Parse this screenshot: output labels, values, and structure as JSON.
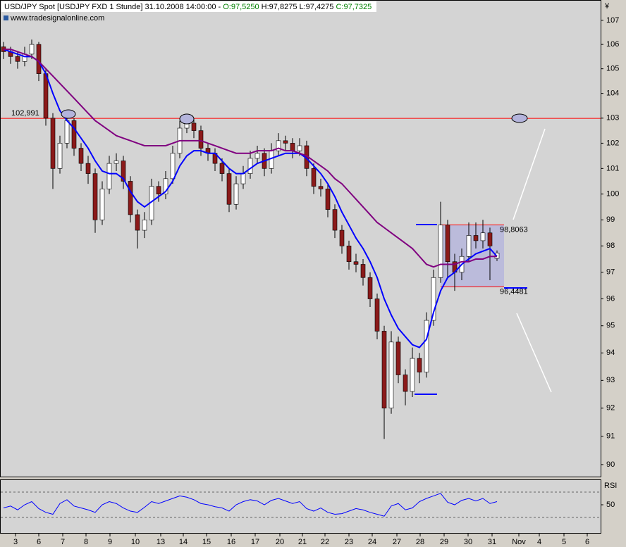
{
  "chart_data": [
    {
      "type": "candlestick",
      "title": "USD/JPY Spot [USDJPY FXD  1 Stunde] 31.10.2008 14:00:00 -",
      "ohlc_labels": [
        {
          "text": "O:97,5250",
          "color": "#008000"
        },
        {
          "text": "H:97,8275 L:97,4275",
          "color": "#000000"
        },
        {
          "text": "C:97,7325",
          "color": "#008000"
        }
      ],
      "source": "www.tradesignalonline.com",
      "currency_symbol": "¥",
      "x": [
        0,
        1,
        2,
        3,
        4,
        5,
        6,
        7,
        8,
        9,
        10,
        11,
        12,
        13,
        14,
        15,
        16,
        17,
        18,
        19,
        20,
        21,
        22,
        23,
        24,
        25,
        26,
        27,
        28,
        29,
        30,
        31,
        32,
        33,
        34,
        35,
        36,
        37,
        38,
        39,
        40,
        41,
        42,
        43,
        44,
        45,
        46,
        47,
        48,
        49,
        50,
        51,
        52,
        53,
        54,
        55,
        56,
        57,
        58,
        59,
        60,
        61,
        62,
        63,
        64,
        65,
        66,
        67,
        68,
        69,
        70
      ],
      "open": [
        105.9,
        105.7,
        105.5,
        105.3,
        105.6,
        106.0,
        104.8,
        103.0,
        101.0,
        102.0,
        102.9,
        101.8,
        101.2,
        100.8,
        99.0,
        100.2,
        101.2,
        101.3,
        100.5,
        99.2,
        98.6,
        99.0,
        100.3,
        100.0,
        100.6,
        101.6,
        102.6,
        102.8,
        102.5,
        101.8,
        101.6,
        101.2,
        100.8,
        99.6,
        100.4,
        100.8,
        101.4,
        101.6,
        101.0,
        101.7,
        102.1,
        102.0,
        101.7,
        101.9,
        101.0,
        100.3,
        100.2,
        99.4,
        98.6,
        98.0,
        97.4,
        97.3,
        96.8,
        96.0,
        94.8,
        92.0,
        94.4,
        93.2,
        92.6,
        93.8,
        93.3,
        95.2,
        96.8,
        98.8,
        97.4,
        97.0,
        97.6,
        98.4,
        98.2,
        98.5,
        97.525
      ],
      "high": [
        106.1,
        105.9,
        105.7,
        105.9,
        106.2,
        106.1,
        105.0,
        103.2,
        102.3,
        103.2,
        103.0,
        102.0,
        101.5,
        101.0,
        100.5,
        101.5,
        101.6,
        101.5,
        100.7,
        99.4,
        99.3,
        100.6,
        100.5,
        100.9,
        101.9,
        102.9,
        103.1,
        103.0,
        102.7,
        102.0,
        101.8,
        101.4,
        101.0,
        100.7,
        101.1,
        101.7,
        101.9,
        101.8,
        102.0,
        102.4,
        102.3,
        102.2,
        102.2,
        102.1,
        101.2,
        100.6,
        100.4,
        99.6,
        98.8,
        98.2,
        97.7,
        97.5,
        97.0,
        96.2,
        95.0,
        94.8,
        94.6,
        93.4,
        94.2,
        94.0,
        95.5,
        97.1,
        99.7,
        99.0,
        97.7,
        97.9,
        98.9,
        98.9,
        99.0,
        98.7,
        97.8275
      ],
      "low": [
        105.4,
        105.2,
        105.0,
        105.1,
        105.4,
        104.5,
        102.7,
        100.2,
        100.8,
        101.8,
        101.5,
        100.9,
        100.4,
        98.5,
        98.8,
        100.0,
        100.9,
        100.2,
        98.9,
        97.9,
        98.3,
        98.8,
        99.7,
        99.8,
        100.4,
        101.4,
        102.4,
        102.2,
        101.5,
        101.3,
        100.9,
        100.5,
        99.3,
        99.4,
        100.2,
        100.6,
        101.2,
        100.7,
        100.8,
        101.5,
        101.7,
        101.4,
        101.5,
        100.7,
        100.0,
        99.9,
        99.1,
        98.3,
        97.7,
        97.1,
        97.0,
        96.5,
        95.7,
        94.5,
        90.9,
        91.8,
        92.9,
        92.1,
        92.4,
        92.9,
        93.1,
        95.0,
        96.6,
        96.8,
        96.3,
        96.7,
        97.4,
        97.9,
        97.9,
        96.7,
        97.4275
      ],
      "close": [
        105.7,
        105.5,
        105.3,
        105.6,
        106.0,
        104.8,
        103.0,
        101.0,
        102.0,
        102.9,
        101.8,
        101.2,
        100.8,
        99.0,
        100.2,
        101.2,
        101.3,
        100.5,
        99.2,
        98.6,
        99.0,
        100.3,
        100.0,
        100.6,
        101.6,
        102.6,
        102.8,
        102.5,
        101.8,
        101.6,
        101.2,
        100.8,
        99.6,
        100.4,
        100.8,
        101.4,
        101.6,
        101.0,
        101.7,
        102.1,
        102.0,
        101.7,
        101.9,
        101.0,
        100.3,
        100.2,
        99.4,
        98.6,
        98.0,
        97.4,
        97.3,
        96.8,
        96.0,
        94.8,
        92.0,
        94.4,
        93.2,
        92.6,
        93.8,
        93.3,
        95.2,
        96.8,
        98.8,
        97.4,
        97.0,
        97.6,
        98.4,
        98.2,
        98.5,
        98.0,
        97.7325
      ],
      "up_color": "#ffffff",
      "down_color": "#8b1a1a",
      "wick_color": "#000000",
      "overlays": [
        {
          "color": "#0000ff",
          "values": [
            105.8,
            105.7,
            105.6,
            105.5,
            105.5,
            105.3,
            104.8,
            104.0,
            103.3,
            102.9,
            102.6,
            102.2,
            101.8,
            101.3,
            100.9,
            100.8,
            100.8,
            100.6,
            100.1,
            99.7,
            99.5,
            99.7,
            99.9,
            100.1,
            100.5,
            101.1,
            101.5,
            101.7,
            101.7,
            101.6,
            101.6,
            101.3,
            101.0,
            100.8,
            100.8,
            101.0,
            101.2,
            101.3,
            101.4,
            101.5,
            101.6,
            101.6,
            101.6,
            101.4,
            101.1,
            100.8,
            100.4,
            99.9,
            99.3,
            98.8,
            98.3,
            97.9,
            97.4,
            96.8,
            96.0,
            95.4,
            94.9,
            94.6,
            94.3,
            94.2,
            94.5,
            95.5,
            96.3,
            96.8,
            97.0,
            97.3,
            97.5,
            97.7,
            97.8,
            97.9,
            97.6
          ]
        },
        {
          "color": "#800080",
          "values": [
            105.8,
            105.8,
            105.7,
            105.6,
            105.5,
            105.3,
            105.0,
            104.7,
            104.4,
            104.1,
            103.8,
            103.5,
            103.2,
            102.9,
            102.7,
            102.5,
            102.3,
            102.2,
            102.1,
            102.0,
            101.9,
            101.9,
            101.9,
            101.9,
            102.0,
            102.1,
            102.1,
            102.1,
            102.1,
            102.0,
            101.9,
            101.8,
            101.7,
            101.6,
            101.6,
            101.6,
            101.7,
            101.7,
            101.7,
            101.8,
            101.7,
            101.7,
            101.6,
            101.5,
            101.3,
            101.1,
            100.9,
            100.6,
            100.4,
            100.1,
            99.8,
            99.5,
            99.2,
            98.9,
            98.7,
            98.5,
            98.3,
            98.1,
            97.9,
            97.6,
            97.3,
            97.2,
            97.3,
            97.3,
            97.3,
            97.4,
            97.4,
            97.5,
            97.5,
            97.6,
            97.6
          ]
        }
      ],
      "reference_line": {
        "value": 102.991,
        "label": "102,991",
        "color": "#ff0000"
      },
      "range_box": {
        "x": [
          62,
          71
        ],
        "top": {
          "value": 98.8063,
          "label": "98,8063"
        },
        "bottom": {
          "value": 96.4481,
          "label": "96,4481"
        },
        "color": "#ff0000",
        "fill": "#b4b4dc"
      },
      "log_scale": true,
      "xlim": [
        -0.5,
        84.7
      ],
      "xticks": [
        {
          "value": 1.7,
          "label": "3"
        },
        {
          "value": 5.0,
          "label": "6"
        },
        {
          "value": 8.4,
          "label": "7"
        },
        {
          "value": 11.7,
          "label": "8"
        },
        {
          "value": 15.1,
          "label": "9"
        },
        {
          "value": 18.7,
          "label": "10"
        },
        {
          "value": 22.3,
          "label": "13"
        },
        {
          "value": 25.5,
          "label": "14"
        },
        {
          "value": 28.8,
          "label": "15"
        },
        {
          "value": 32.3,
          "label": "16"
        },
        {
          "value": 35.7,
          "label": "17"
        },
        {
          "value": 39.2,
          "label": "20"
        },
        {
          "value": 42.4,
          "label": "21"
        },
        {
          "value": 45.6,
          "label": "22"
        },
        {
          "value": 49.0,
          "label": "23"
        },
        {
          "value": 52.3,
          "label": "24"
        },
        {
          "value": 55.8,
          "label": "27"
        },
        {
          "value": 59.1,
          "label": "28"
        },
        {
          "value": 62.5,
          "label": "29"
        },
        {
          "value": 65.9,
          "label": "30"
        },
        {
          "value": 69.3,
          "label": "31"
        },
        {
          "value": 73.1,
          "label": "Nov"
        },
        {
          "value": 76.0,
          "label": "4"
        },
        {
          "value": 79.5,
          "label": "5"
        },
        {
          "value": 82.8,
          "label": "6"
        }
      ],
      "ylim": [
        89.58,
        107.85
      ],
      "yticks": [
        90,
        91,
        92,
        93,
        94,
        95,
        96,
        97,
        98,
        99,
        100,
        101,
        102,
        103,
        104,
        105,
        106,
        107
      ]
    },
    {
      "type": "line",
      "label": "RSI",
      "x": [
        0,
        1,
        2,
        3,
        4,
        5,
        6,
        7,
        8,
        9,
        10,
        11,
        12,
        13,
        14,
        15,
        16,
        17,
        18,
        19,
        20,
        21,
        22,
        23,
        24,
        25,
        26,
        27,
        28,
        29,
        30,
        31,
        32,
        33,
        34,
        35,
        36,
        37,
        38,
        39,
        40,
        41,
        42,
        43,
        44,
        45,
        46,
        47,
        48,
        49,
        50,
        51,
        52,
        53,
        54,
        55,
        56,
        57,
        58,
        59,
        60,
        61,
        62,
        63,
        64,
        65,
        66,
        67,
        68,
        69,
        70
      ],
      "values": [
        45,
        48,
        42,
        50,
        55,
        44,
        38,
        35,
        52,
        58,
        48,
        45,
        42,
        38,
        50,
        55,
        52,
        45,
        40,
        38,
        46,
        55,
        52,
        56,
        60,
        64,
        62,
        58,
        52,
        50,
        47,
        45,
        40,
        50,
        55,
        58,
        56,
        50,
        57,
        60,
        56,
        52,
        55,
        44,
        40,
        45,
        38,
        35,
        36,
        40,
        44,
        42,
        38,
        35,
        32,
        48,
        52,
        42,
        45,
        55,
        60,
        64,
        68,
        54,
        50,
        57,
        60,
        56,
        60,
        52,
        55
      ],
      "color": "#0000ff",
      "xlim": [
        -0.5,
        84.7
      ],
      "ylim": [
        5.6,
        88.9
      ],
      "yticks": [
        50
      ],
      "levels": [
        30,
        70
      ]
    }
  ]
}
